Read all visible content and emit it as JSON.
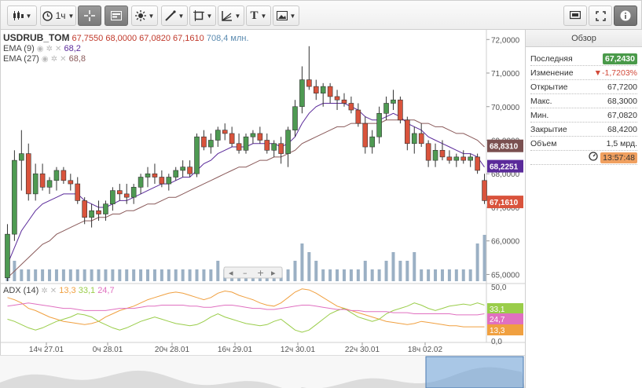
{
  "toolbar": {
    "timeframe_label": "1ч"
  },
  "legend": {
    "symbol": "USDRUB_TOM",
    "open": "67,7550",
    "high": "68,0000",
    "low": "67,0820",
    "close": "67,1610",
    "volume": "708,4 млн.",
    "ema9_label": "EMA (9)",
    "ema9_value": "68,2",
    "ema27_label": "EMA (27)",
    "ema27_value": "68,8",
    "adx_label": "ADX (14)",
    "adx_v1": "13,3",
    "adx_v2": "33,1",
    "adx_v3": "24,7"
  },
  "price_axis": [
    "72,0000",
    "71,0000",
    "70,0000",
    "69,0000",
    "68,0000",
    "67,0000",
    "66,0000",
    "65,0000"
  ],
  "adx_axis": [
    "50,0",
    "0,0"
  ],
  "price_tags": {
    "ema27": "68,8310",
    "ema9": "68,2251",
    "last": "67,1610"
  },
  "adx_tags": {
    "green": "33,1",
    "pink": "24,7",
    "orange": "13,3"
  },
  "time_axis": [
    "14ч 27.01",
    "0ч 28.01",
    "20ч 28.01",
    "16ч 29.01",
    "12ч 30.01",
    "22ч 30.01",
    "18ч 02.02"
  ],
  "overview": {
    "title": "Обзор",
    "rows": [
      {
        "label": "Последняя",
        "value": "67,2430"
      },
      {
        "label": "Изменение",
        "value": "▼-1,7203%"
      },
      {
        "label": "Открытие",
        "value": "67,7200"
      },
      {
        "label": "Макс.",
        "value": "68,3000"
      },
      {
        "label": "Мин.",
        "value": "67,0820"
      },
      {
        "label": "Закрытие",
        "value": "68,4200"
      },
      {
        "label": "Объем",
        "value": "1,5 мрд."
      }
    ],
    "time": "13:57:48"
  },
  "colors": {
    "up": "#4e9a52",
    "down": "#d9533c",
    "ema9": "#5a2a9a",
    "ema27": "#8a5a5a",
    "volume": "#9bb0c4",
    "adx_green": "#9acd4a",
    "adx_pink": "#e070c0",
    "adx_orange": "#f0a040"
  },
  "chart_data": {
    "type": "candlestick",
    "price_range": [
      64.8,
      72.1
    ],
    "candles": [
      [
        64.9,
        66.5,
        64.8,
        66.2
      ],
      [
        66.2,
        68.7,
        66.0,
        68.4
      ],
      [
        68.4,
        69.3,
        67.5,
        68.6
      ],
      [
        68.6,
        68.9,
        67.2,
        67.4
      ],
      [
        67.4,
        68.3,
        67.2,
        68.0
      ],
      [
        68.0,
        68.3,
        67.5,
        67.6
      ],
      [
        67.6,
        67.9,
        67.4,
        67.8
      ],
      [
        67.8,
        68.2,
        67.5,
        68.1
      ],
      [
        68.1,
        68.2,
        67.7,
        67.8
      ],
      [
        67.8,
        68.0,
        67.5,
        67.7
      ],
      [
        67.7,
        67.9,
        67.1,
        67.2
      ],
      [
        67.2,
        67.3,
        66.5,
        66.7
      ],
      [
        66.7,
        67.1,
        66.4,
        66.9
      ],
      [
        66.9,
        67.2,
        66.6,
        66.8
      ],
      [
        66.8,
        67.2,
        66.6,
        67.1
      ],
      [
        67.1,
        67.6,
        66.9,
        67.5
      ],
      [
        67.5,
        67.7,
        67.2,
        67.4
      ],
      [
        67.4,
        67.7,
        67.1,
        67.3
      ],
      [
        67.3,
        67.7,
        67.1,
        67.6
      ],
      [
        67.6,
        68.0,
        67.4,
        67.9
      ],
      [
        67.9,
        68.2,
        67.6,
        68.0
      ],
      [
        68.0,
        68.3,
        67.7,
        67.9
      ],
      [
        67.9,
        68.1,
        67.6,
        67.7
      ],
      [
        67.7,
        68.0,
        67.5,
        67.9
      ],
      [
        67.9,
        68.2,
        67.8,
        68.1
      ],
      [
        68.1,
        68.4,
        67.9,
        68.2
      ],
      [
        68.2,
        68.4,
        67.9,
        68.0
      ],
      [
        68.0,
        69.2,
        67.9,
        69.1
      ],
      [
        69.1,
        69.3,
        68.7,
        68.8
      ],
      [
        68.8,
        69.2,
        68.6,
        69.0
      ],
      [
        69.0,
        69.4,
        68.8,
        69.3
      ],
      [
        69.3,
        69.5,
        69.0,
        69.2
      ],
      [
        69.2,
        69.4,
        68.8,
        68.9
      ],
      [
        68.9,
        69.2,
        68.6,
        68.7
      ],
      [
        68.7,
        69.2,
        68.6,
        69.1
      ],
      [
        69.1,
        69.3,
        68.9,
        69.2
      ],
      [
        69.2,
        69.4,
        68.9,
        69.0
      ],
      [
        69.0,
        69.2,
        68.6,
        68.7
      ],
      [
        68.7,
        69.0,
        68.5,
        68.9
      ],
      [
        68.9,
        69.1,
        68.3,
        68.6
      ],
      [
        68.6,
        69.4,
        68.2,
        69.3
      ],
      [
        69.3,
        70.2,
        69.1,
        70.0
      ],
      [
        70.0,
        71.2,
        69.8,
        70.8
      ],
      [
        70.8,
        71.8,
        70.5,
        70.6
      ],
      [
        70.6,
        70.8,
        70.2,
        70.4
      ],
      [
        70.4,
        70.7,
        70.0,
        70.6
      ],
      [
        70.6,
        70.7,
        70.1,
        70.3
      ],
      [
        70.3,
        70.5,
        69.9,
        70.2
      ],
      [
        70.2,
        70.4,
        70.0,
        70.1
      ],
      [
        70.1,
        70.3,
        69.8,
        69.9
      ],
      [
        69.9,
        70.1,
        69.4,
        69.5
      ],
      [
        69.5,
        69.7,
        68.6,
        68.8
      ],
      [
        68.8,
        69.3,
        68.6,
        69.1
      ],
      [
        69.1,
        70.0,
        68.9,
        69.8
      ],
      [
        69.8,
        70.3,
        69.6,
        70.1
      ],
      [
        70.1,
        70.5,
        69.9,
        70.2
      ],
      [
        70.2,
        70.3,
        69.5,
        69.6
      ],
      [
        69.6,
        69.7,
        68.7,
        68.9
      ],
      [
        68.9,
        69.4,
        68.6,
        69.2
      ],
      [
        69.2,
        69.5,
        68.8,
        68.9
      ],
      [
        68.9,
        69.0,
        68.2,
        68.4
      ],
      [
        68.4,
        68.9,
        68.2,
        68.7
      ],
      [
        68.7,
        69.0,
        68.4,
        68.5
      ],
      [
        68.5,
        68.7,
        68.3,
        68.4
      ],
      [
        68.4,
        68.6,
        68.2,
        68.5
      ],
      [
        68.5,
        68.7,
        68.3,
        68.4
      ],
      [
        68.4,
        68.6,
        68.2,
        68.5
      ],
      [
        68.5,
        68.6,
        68.0,
        68.1
      ],
      [
        67.8,
        68.0,
        67.1,
        67.2
      ]
    ],
    "volume": [
      1,
      2,
      1,
      1,
      1,
      1,
      1,
      1,
      1,
      1,
      1,
      1,
      1,
      1,
      1,
      1,
      1,
      1,
      1,
      1,
      1,
      1,
      1,
      1,
      1,
      1,
      1,
      1,
      1,
      1,
      2,
      1,
      1,
      1,
      1,
      1,
      1,
      1,
      1,
      1,
      1,
      2,
      4,
      3,
      2,
      1,
      1,
      1,
      1,
      1,
      1,
      2,
      1,
      1,
      2,
      3,
      2,
      2,
      3,
      1,
      1,
      1,
      1,
      1,
      1,
      1,
      1,
      4,
      5
    ],
    "ema9": [
      65.3,
      65.8,
      66.3,
      66.6,
      66.9,
      67.1,
      67.2,
      67.3,
      67.4,
      67.4,
      67.4,
      67.2,
      67.1,
      67.0,
      67.0,
      67.1,
      67.2,
      67.2,
      67.3,
      67.4,
      67.5,
      67.6,
      67.7,
      67.7,
      67.8,
      67.9,
      67.9,
      68.1,
      68.3,
      68.4,
      68.6,
      68.7,
      68.8,
      68.8,
      68.8,
      68.9,
      68.9,
      68.9,
      68.9,
      68.8,
      68.9,
      69.1,
      69.5,
      69.8,
      70.0,
      70.1,
      70.1,
      70.1,
      70.1,
      70.0,
      69.9,
      69.7,
      69.6,
      69.6,
      69.7,
      69.8,
      69.7,
      69.5,
      69.4,
      69.3,
      69.1,
      69.0,
      68.9,
      68.8,
      68.7,
      68.6,
      68.6,
      68.5,
      68.2
    ],
    "ema27": [
      64.9,
      65.1,
      65.3,
      65.5,
      65.7,
      65.9,
      66.0,
      66.2,
      66.3,
      66.4,
      66.5,
      66.6,
      66.6,
      66.7,
      66.7,
      66.8,
      66.8,
      66.9,
      66.9,
      67.0,
      67.1,
      67.1,
      67.2,
      67.3,
      67.3,
      67.4,
      67.5,
      67.6,
      67.7,
      67.8,
      67.9,
      68.0,
      68.1,
      68.2,
      68.2,
      68.3,
      68.4,
      68.4,
      68.5,
      68.5,
      68.6,
      68.7,
      68.9,
      69.0,
      69.1,
      69.2,
      69.3,
      69.4,
      69.4,
      69.5,
      69.5,
      69.5,
      69.5,
      69.5,
      69.6,
      69.6,
      69.6,
      69.6,
      69.6,
      69.5,
      69.5,
      69.4,
      69.4,
      69.3,
      69.2,
      69.2,
      69.1,
      69.0,
      68.8
    ],
    "adx_range": [
      0,
      50
    ],
    "adx_orange": [
      40,
      38,
      35,
      30,
      28,
      25,
      22,
      20,
      18,
      17,
      16,
      15,
      16,
      18,
      22,
      25,
      28,
      30,
      32,
      35,
      38,
      40,
      42,
      44,
      45,
      44,
      42,
      40,
      38,
      40,
      44,
      46,
      45,
      42,
      40,
      38,
      35,
      33,
      32,
      35,
      40,
      45,
      48,
      47,
      44,
      40,
      36,
      32,
      30,
      28,
      26,
      24,
      22,
      20,
      18,
      17,
      16,
      15,
      16,
      18,
      17,
      16,
      15,
      14,
      14,
      13,
      13,
      13,
      13
    ],
    "adx_green": [
      20,
      18,
      15,
      12,
      10,
      12,
      15,
      18,
      20,
      22,
      25,
      24,
      22,
      18,
      15,
      12,
      10,
      12,
      15,
      18,
      20,
      22,
      20,
      18,
      16,
      15,
      14,
      15,
      18,
      22,
      25,
      22,
      20,
      18,
      16,
      15,
      14,
      15,
      18,
      20,
      15,
      10,
      8,
      10,
      15,
      20,
      25,
      28,
      30,
      26,
      22,
      20,
      18,
      20,
      25,
      28,
      30,
      32,
      35,
      33,
      30,
      28,
      30,
      32,
      33,
      34,
      33,
      35,
      33
    ],
    "adx_pink": [
      32,
      33,
      34,
      35,
      34,
      33,
      32,
      31,
      30,
      30,
      29,
      28,
      28,
      28,
      28,
      29,
      30,
      30,
      30,
      31,
      32,
      32,
      33,
      33,
      33,
      33,
      32,
      32,
      31,
      31,
      32,
      33,
      33,
      32,
      31,
      30,
      30,
      29,
      29,
      30,
      31,
      32,
      33,
      33,
      32,
      31,
      30,
      29,
      29,
      28,
      28,
      27,
      27,
      27,
      27,
      26,
      26,
      26,
      25,
      25,
      25,
      25,
      25,
      25,
      24,
      24,
      24,
      24,
      25
    ]
  }
}
